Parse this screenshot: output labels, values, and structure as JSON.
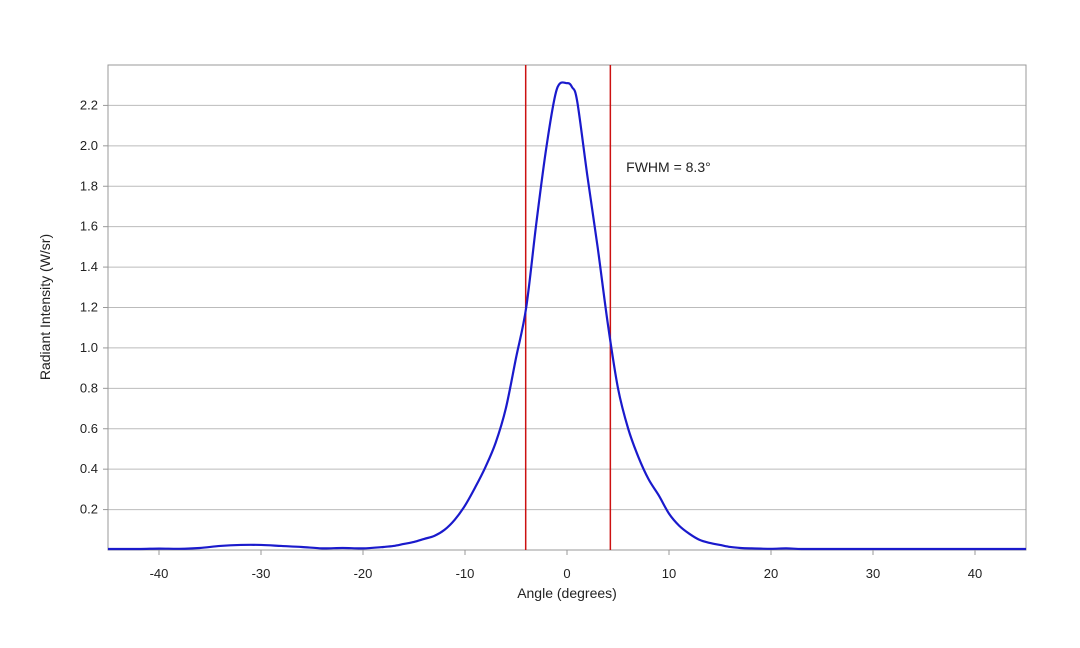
{
  "chart_data": {
    "type": "line",
    "title": "",
    "xlabel": "Angle (degrees)",
    "ylabel": "Radiant Intensity (W/sr)",
    "xlim": [
      -45,
      45
    ],
    "ylim": [
      0,
      2.4
    ],
    "grid": {
      "horizontal": true,
      "vertical": false
    },
    "x_ticks": [
      -40,
      -30,
      -20,
      -10,
      0,
      10,
      20,
      30,
      40
    ],
    "x_tick_labels": [
      "-40",
      "-30",
      "-20",
      "-10",
      "0",
      "10",
      "20",
      "30",
      "40"
    ],
    "y_ticks": [
      0.2,
      0.4,
      0.6,
      0.8,
      1.0,
      1.2,
      1.4,
      1.6,
      1.8,
      2.0,
      2.2
    ],
    "y_tick_labels": [
      "0.2",
      "0.4",
      "0.6",
      "0.8",
      "1.0",
      "1.2",
      "1.4",
      "1.6",
      "1.8",
      "2.0",
      "2.2"
    ],
    "series": [
      {
        "color": "#1a1acc",
        "x": [
          -45,
          -42,
          -40,
          -38,
          -36,
          -34,
          -32,
          -30,
          -28,
          -26,
          -24,
          -22,
          -20,
          -18,
          -17,
          -16,
          -15,
          -14,
          -13,
          -12,
          -11,
          -10,
          -9,
          -8,
          -7,
          -6,
          -5,
          -4,
          -3,
          -2,
          -1,
          0,
          0.5,
          1,
          2,
          3,
          4,
          5,
          6,
          7,
          8,
          9,
          10,
          11,
          12,
          13,
          14,
          15,
          16,
          17,
          18,
          20,
          21.5,
          23,
          25,
          30,
          35,
          40,
          45
        ],
        "y": [
          0.005,
          0.005,
          0.007,
          0.006,
          0.01,
          0.02,
          0.025,
          0.025,
          0.02,
          0.015,
          0.008,
          0.01,
          0.008,
          0.015,
          0.02,
          0.03,
          0.04,
          0.055,
          0.07,
          0.1,
          0.15,
          0.22,
          0.31,
          0.41,
          0.53,
          0.7,
          0.95,
          1.2,
          1.62,
          2.0,
          2.28,
          2.31,
          2.29,
          2.22,
          1.85,
          1.5,
          1.12,
          0.8,
          0.6,
          0.46,
          0.35,
          0.27,
          0.18,
          0.12,
          0.08,
          0.05,
          0.035,
          0.025,
          0.015,
          0.01,
          0.008,
          0.006,
          0.008,
          0.005,
          0.005,
          0.005,
          0.005,
          0.005,
          0.005
        ]
      }
    ],
    "vlines": [
      {
        "x": -4.05,
        "color": "#cc1111"
      },
      {
        "x": 4.25,
        "color": "#cc1111"
      }
    ],
    "annotations": [
      {
        "text": "FWHM = 8.3°",
        "x": 5.8,
        "y": 1.87
      }
    ]
  }
}
